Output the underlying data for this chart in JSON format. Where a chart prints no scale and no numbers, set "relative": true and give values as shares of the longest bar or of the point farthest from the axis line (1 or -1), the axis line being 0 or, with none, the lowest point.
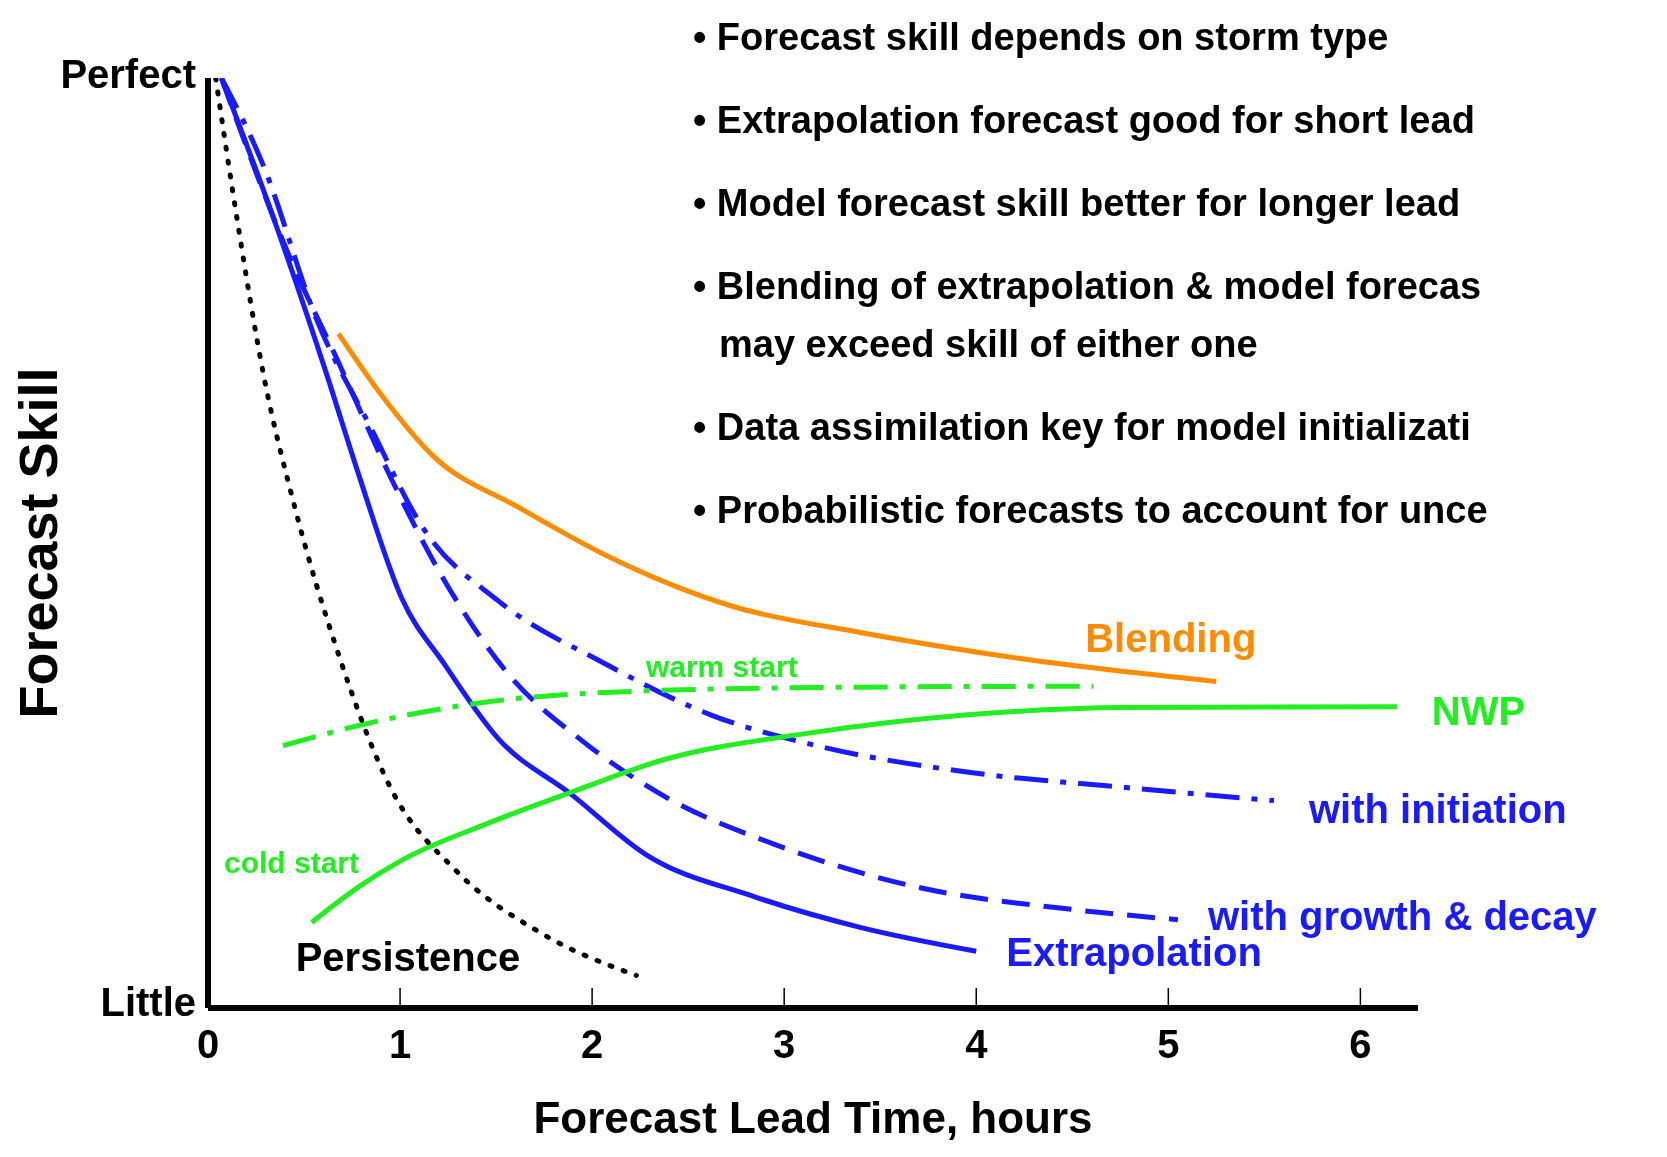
{
  "chart_data": {
    "type": "line",
    "xlabel": "Forecast Lead Time, hours",
    "ylabel": "Forecast Skill",
    "xlim": [
      0,
      6.3
    ],
    "xticks": [
      0,
      1,
      2,
      3,
      4,
      5,
      6
    ],
    "relative": true,
    "grid": false,
    "legend": false,
    "marker": "none",
    "series": [
      {
        "name": "Extrapolation",
        "color": "#1a1aff",
        "line_style": "solid",
        "x": [
          0.07,
          0.34,
          0.62,
          0.79,
          1.01,
          1.23,
          1.51,
          1.89,
          2.28,
          2.84,
          3.39,
          4.0
        ],
        "values": [
          1,
          0.85,
          0.68,
          0.57,
          0.44,
          0.37,
          0.29,
          0.23,
          0.165,
          0.12,
          0.087,
          0.061
        ]
      },
      {
        "name": "with growth & decay",
        "color": "#1a1aff",
        "line_style": "dashed",
        "x": [
          0.07,
          0.43,
          0.68,
          0.95,
          1.23,
          1.56,
          1.95,
          2.39,
          2.95,
          3.67,
          4.5,
          5.05
        ],
        "values": [
          1,
          0.805,
          0.694,
          0.571,
          0.46,
          0.36,
          0.287,
          0.226,
          0.176,
          0.131,
          0.106,
          0.095
        ]
      },
      {
        "name": "with initiation",
        "color": "#1a1aff",
        "line_style": "dashdot",
        "x": [
          0.07,
          0.29,
          0.57,
          0.84,
          1.12,
          1.51,
          2.06,
          2.62,
          3.17,
          3.94,
          4.78,
          5.55
        ],
        "values": [
          1,
          0.905,
          0.738,
          0.627,
          0.516,
          0.438,
          0.371,
          0.315,
          0.282,
          0.254,
          0.237,
          0.223
        ]
      },
      {
        "name": "Blending",
        "color": "#ff8c00",
        "line_style": "solid",
        "x": [
          0.68,
          0.9,
          1.17,
          1.62,
          2.06,
          2.73,
          3.39,
          4.22,
          5.25
        ],
        "values": [
          0.725,
          0.66,
          0.594,
          0.538,
          0.488,
          0.432,
          0.404,
          0.376,
          0.351
        ]
      },
      {
        "name": "NWP",
        "color": "#22ee22",
        "line_style": "solid",
        "x": [
          0.54,
          0.79,
          1.01,
          1.45,
          1.89,
          2.39,
          3.11,
          3.94,
          4.78,
          6.19
        ],
        "values": [
          0.092,
          0.131,
          0.159,
          0.198,
          0.232,
          0.268,
          0.295,
          0.315,
          0.323,
          0.324
        ]
      },
      {
        "name": "warm start",
        "color": "#22ee22",
        "line_style": "dashdot",
        "x": [
          0.39,
          0.79,
          1.45,
          2.28,
          3.39,
          4.61
        ],
        "values": [
          0.282,
          0.304,
          0.329,
          0.341,
          0.345,
          0.346
        ]
      },
      {
        "name": "Persistence",
        "color": "#000000",
        "line_style": "dotted",
        "x": [
          0.04,
          0.15,
          0.29,
          0.45,
          0.68,
          0.95,
          1.29,
          1.73,
          2.23
        ],
        "values": [
          1,
          0.85,
          0.68,
          0.54,
          0.38,
          0.237,
          0.148,
          0.081,
          0.035
        ]
      }
    ],
    "annotations": [
      "Perfect",
      "Little",
      "• Forecast skill depends on storm type",
      "• Extrapolation forecast good for short lead",
      "• Model forecast skill better for longer lead",
      "• Blending of extrapolation & model forecas",
      "may exceed skill of either one",
      "• Data assimilation key for model initializati",
      "• Probabilistic forecasts to account for unce",
      "cold start"
    ]
  }
}
